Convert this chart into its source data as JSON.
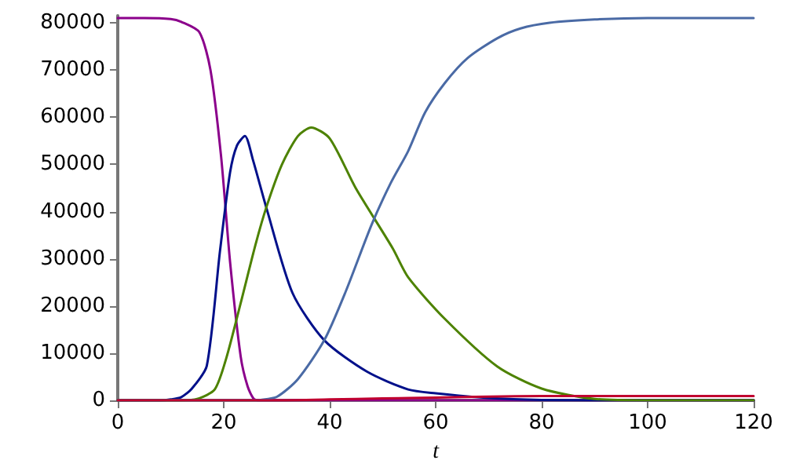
{
  "chart_data": {
    "type": "line",
    "xlabel": "t",
    "xlim": [
      0,
      120
    ],
    "xticks": [
      0,
      20,
      40,
      60,
      80,
      100,
      120
    ],
    "ylim": [
      0,
      81500
    ],
    "yticks": [
      0,
      10000,
      20000,
      30000,
      40000,
      50000,
      60000,
      70000,
      80000
    ],
    "grid": false,
    "marker": "none",
    "line_style": "solid",
    "series": [
      {
        "color": "#8b008b",
        "x": [
          0,
          5,
          10,
          12,
          15.4,
          17.5,
          19.5,
          21.2,
          23.2,
          24.5,
          25.7,
          27,
          40,
          60,
          80,
          100,
          120
        ],
        "values": [
          81000,
          81000,
          80800,
          80200,
          78000,
          70000,
          51700,
          29300,
          9300,
          3000,
          300,
          0,
          0,
          0,
          0,
          0,
          0
        ]
      },
      {
        "color": "#00108a",
        "x": [
          0,
          8,
          10,
          12,
          14,
          16.8,
          19.3,
          21.2,
          22.5,
          24,
          25.5,
          28.1,
          33,
          39,
          47,
          54.8,
          60,
          70,
          80,
          100,
          120
        ],
        "values": [
          0,
          0,
          200,
          700,
          2500,
          7300,
          31700,
          48300,
          54000,
          56000,
          51000,
          40600,
          22700,
          12700,
          6100,
          2300,
          1500,
          500,
          100,
          0,
          0
        ]
      },
      {
        "color": "#4d8200",
        "x": [
          0,
          12,
          15,
          18.3,
          20.5,
          23.2,
          26,
          28.1,
          31,
          34,
          36.5,
          40,
          44.9,
          51.9,
          54.8,
          61.7,
          71.6,
          80,
          90,
          100,
          120
        ],
        "values": [
          0,
          0,
          300,
          2300,
          9000,
          20600,
          33000,
          41100,
          50000,
          56000,
          57800,
          55500,
          45000,
          32200,
          26100,
          17300,
          7200,
          2500,
          300,
          0,
          0
        ]
      },
      {
        "color": "#4a6aa5",
        "x": [
          0,
          25,
          27,
          30.1,
          34,
          39,
          43,
          47.9,
          51.5,
          54.8,
          58,
          61.7,
          66,
          71.6,
          76,
          81.5,
          90,
          100,
          120
        ],
        "values": [
          0,
          0,
          100,
          800,
          4500,
          12800,
          23000,
          37200,
          46000,
          52800,
          61000,
          67200,
          72500,
          76700,
          78800,
          80000,
          80700,
          81000,
          81000
        ]
      },
      {
        "color": "#c00030",
        "x": [
          0,
          28,
          40,
          50,
          60,
          70,
          80,
          90,
          100,
          120
        ],
        "values": [
          0,
          0,
          200,
          400,
          600,
          800,
          900,
          900,
          900,
          900
        ]
      }
    ]
  }
}
